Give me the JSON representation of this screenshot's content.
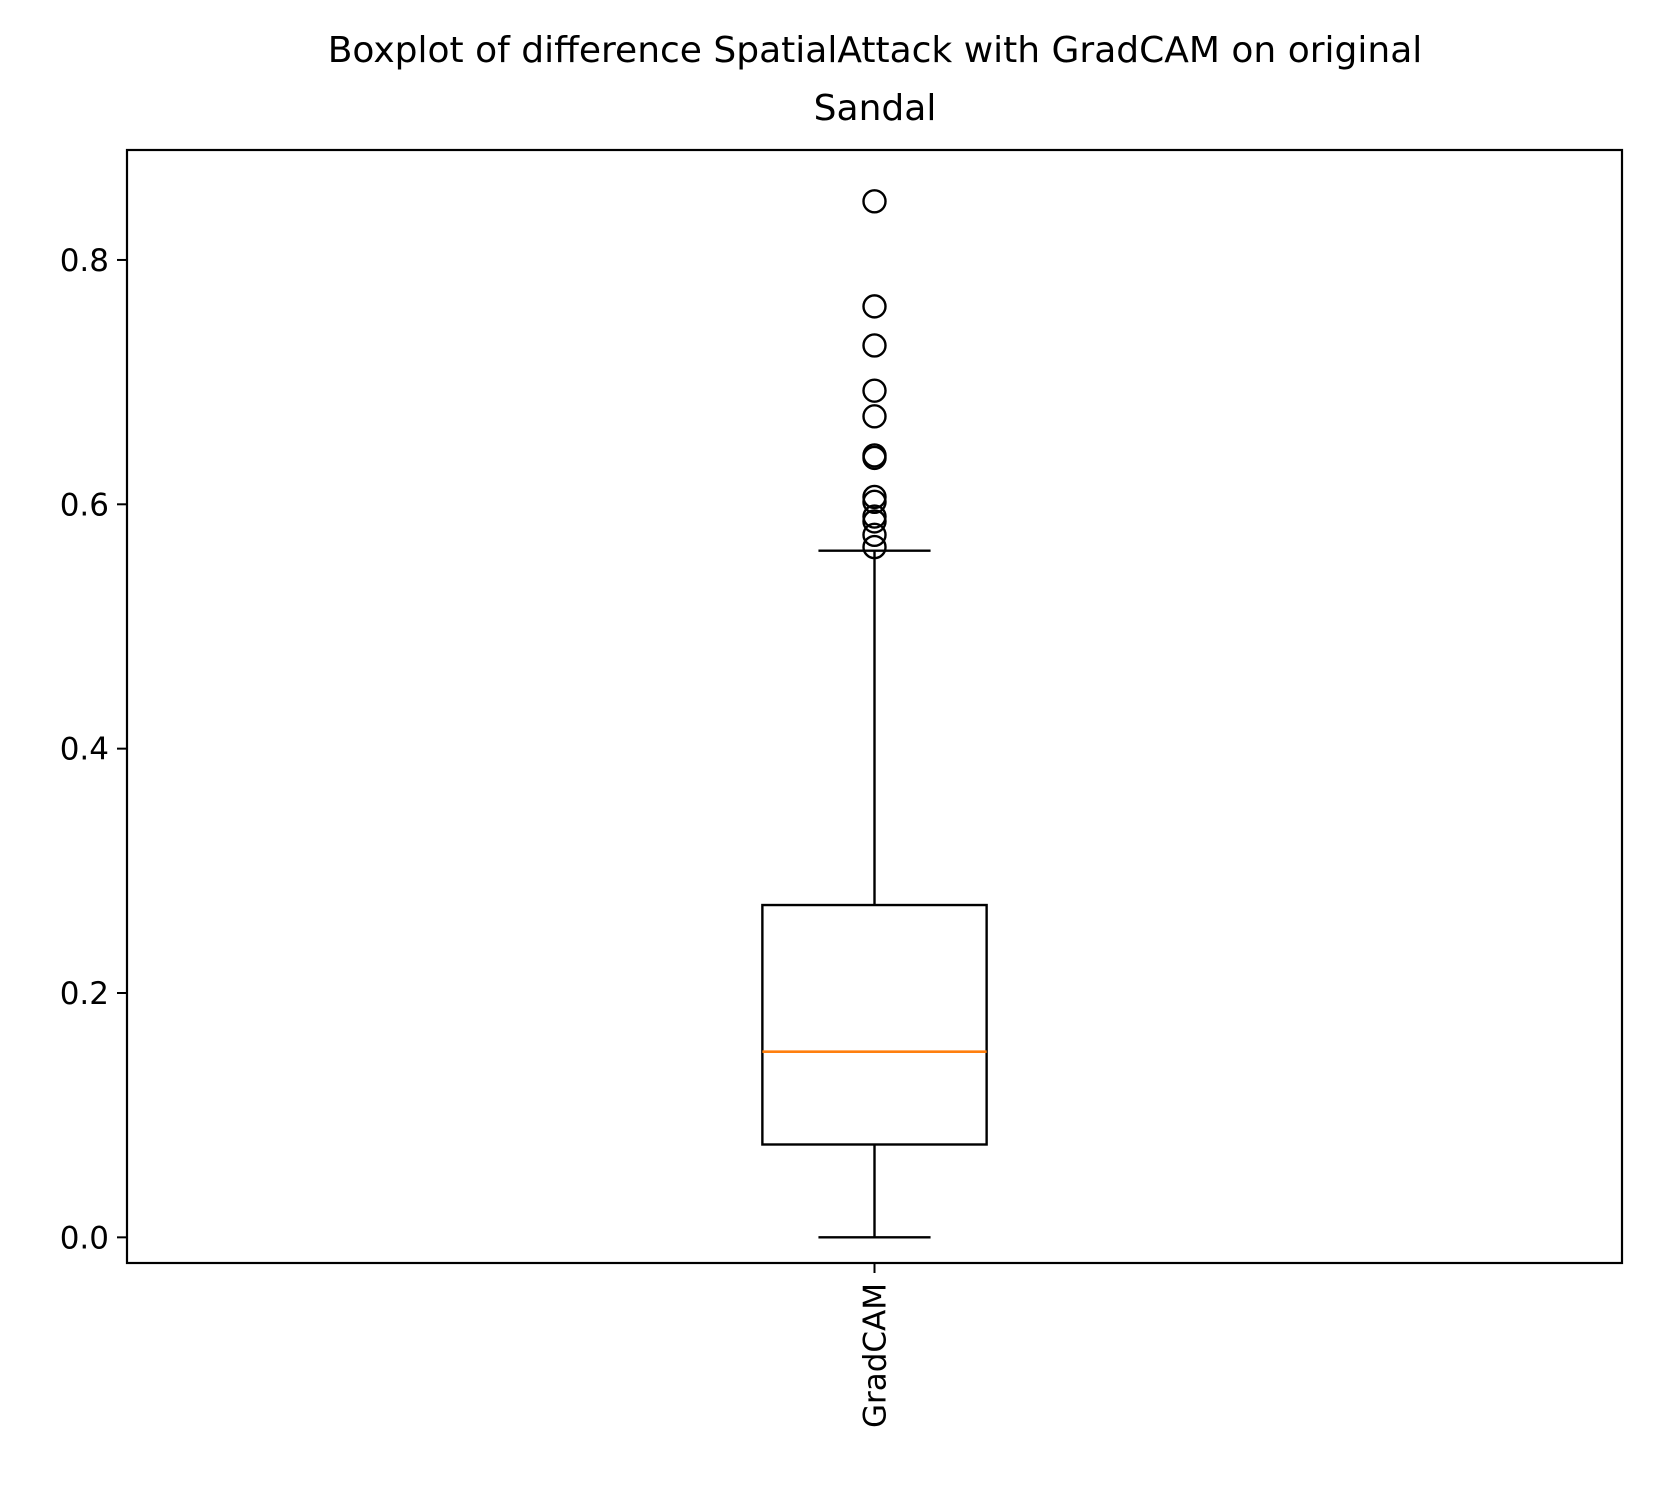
{
  "chart_data": {
    "type": "box",
    "title_lines": [
      "Boxplot of difference SpatialAttack with GradCAM on original",
      "Sandal"
    ],
    "xlabel": "",
    "ylabel": "",
    "ylim": [
      -0.021,
      0.89
    ],
    "yticks": [
      0.0,
      0.2,
      0.4,
      0.6,
      0.8
    ],
    "ytick_labels": [
      "0.0",
      "0.2",
      "0.4",
      "0.6",
      "0.8"
    ],
    "categories": [
      "GradCAM"
    ],
    "boxes": [
      {
        "label": "GradCAM",
        "whisker_low": 0.0,
        "q1": 0.076,
        "median": 0.152,
        "q3": 0.272,
        "whisker_high": 0.562,
        "outliers": [
          0.848,
          0.762,
          0.73,
          0.693,
          0.672,
          0.64,
          0.638,
          0.606,
          0.602,
          0.59,
          0.586,
          0.575,
          0.565
        ]
      }
    ],
    "grid": false,
    "legend": "none",
    "colors": {
      "box": "#000000",
      "median": "#ff7f0e",
      "background": "#ffffff"
    }
  }
}
